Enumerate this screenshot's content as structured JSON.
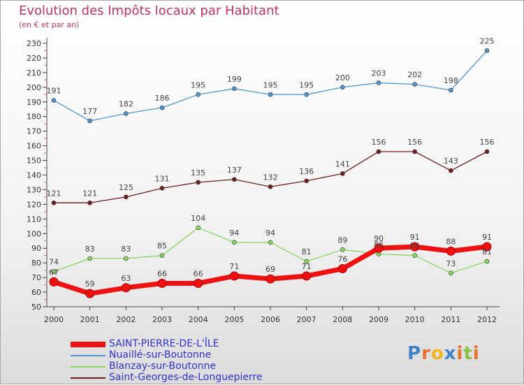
{
  "header": {
    "title": "Evolution des Impôts locaux par Habitant",
    "subtitle": "(en € et par an)"
  },
  "logo": {
    "text": "Proxiti",
    "letter_colors": [
      "#3f84c9",
      "#e8732c",
      "#f1b51c",
      "#3f84c9",
      "#e8732c",
      "#8bc34a",
      "#e8732c"
    ]
  },
  "chart_data": {
    "type": "line",
    "title": "Evolution des Impôts locaux par Habitant",
    "subtitle": "(en € et par an)",
    "x": [
      "2000",
      "2001",
      "2002",
      "2003",
      "2004",
      "2005",
      "2006",
      "2007",
      "2008",
      "2009",
      "2010",
      "2011",
      "2012"
    ],
    "ylim": [
      50,
      230
    ],
    "yticks": [
      50,
      60,
      70,
      80,
      90,
      100,
      110,
      120,
      130,
      140,
      150,
      160,
      170,
      180,
      190,
      200,
      210,
      220,
      230
    ],
    "grid": false,
    "legend_position": "bottom-left",
    "series": [
      {
        "name": "SAINT-PIERRE-DE-L'ÎLE",
        "color": "#ee1111",
        "values": [
          67,
          59,
          63,
          66,
          66,
          71,
          69,
          71,
          76,
          90,
          91,
          88,
          91
        ]
      },
      {
        "name": "Nuaillé-sur-Boutonne",
        "color": "#4f97d1",
        "values": [
          191,
          177,
          182,
          186,
          195,
          199,
          195,
          195,
          200,
          203,
          202,
          198,
          225
        ]
      },
      {
        "name": "Blanzay-sur-Boutonne",
        "color": "#88d860",
        "values": [
          74,
          83,
          83,
          85,
          104,
          94,
          94,
          81,
          89,
          86,
          85,
          73,
          81
        ]
      },
      {
        "name": "Saint-Georges-de-Longuepierre",
        "color": "#6e1e1e",
        "values": [
          121,
          121,
          125,
          131,
          135,
          137,
          132,
          136,
          141,
          156,
          156,
          143,
          156
        ]
      }
    ]
  }
}
